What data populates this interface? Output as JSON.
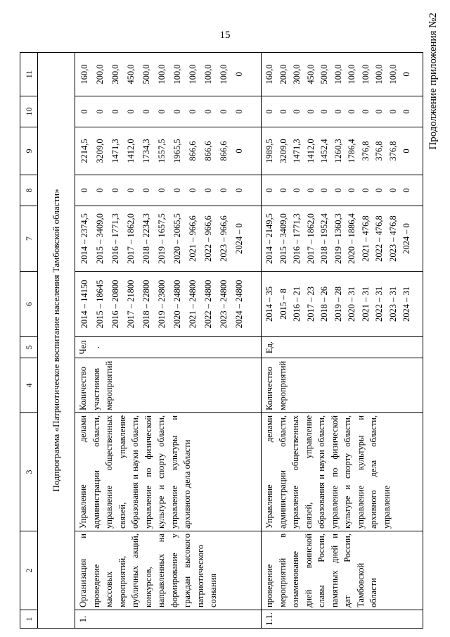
{
  "page": {
    "number": "15",
    "margin_note": "Продолжение приложения №2"
  },
  "table": {
    "column_numbers": [
      "1",
      "2",
      "3",
      "4",
      "5",
      "6",
      "7",
      "8",
      "9",
      "10",
      "11"
    ],
    "subprogram_title": "Подпрограмма «Патриотическое воспитание населения Тамбовской области»",
    "rows": [
      {
        "num": "1.",
        "name": "Организация и проведение массовых мероприятий, публичных акций, конкурсов, направленных на формирование у граждан высокого патриотического сознания",
        "executor": "Управление делами администрации области, управление общественных связей, управление образования и науки области, управление по физической культуре и спорту области, управление культуры и архивного дела области",
        "indicator": "Количество участников мероприятий",
        "unit": "Чел.",
        "indicator_by_year": [
          "2014 – 14150",
          "2015 – 18645",
          "2016 – 20800",
          "2017 – 21800",
          "2018 – 22800",
          "2019 – 23800",
          "2020 – 24800",
          "2021 – 24800",
          "2022 – 24800",
          "2023 – 24800",
          "2024 – 24800"
        ],
        "funding_by_year": [
          "2014 – 2374,5",
          "2015 – 3409,0",
          "2016 – 1771,3",
          "2017 – 1862,0",
          "2018 – 2234,3",
          "2019 – 1657,5",
          "2020 – 2065,5",
          "2021 – 966,6",
          "2022 – 966,6",
          "2023 – 966,6",
          "2024 – 0"
        ],
        "col8_values": [
          "0",
          "0",
          "0",
          "0",
          "0",
          "0",
          "0",
          "0",
          "0",
          "0",
          "0"
        ],
        "col9_values": [
          "2214,5",
          "3209,0",
          "1471,3",
          "1412,0",
          "1734,3",
          "1557,5",
          "1965,5",
          "866,6",
          "866,6",
          "866,6",
          "0"
        ],
        "col10_values": [
          "0",
          "0",
          "0",
          "0",
          "0",
          "0",
          "0",
          "0",
          "0",
          "0",
          "0"
        ],
        "col11_values": [
          "160,0",
          "200,0",
          "300,0",
          "450,0",
          "500,0",
          "100,0",
          "100,0",
          "100,0",
          "100,0",
          "100,0",
          "0"
        ]
      },
      {
        "num": "1.1.",
        "name": "проведение мероприятий в ознаменование дней воинской славы России, памятных дней и дат России, Тамбовской области",
        "executor": "Управление делами администрации области, управление общественных связей, управление образования и науки области, управление по физической культуре и спорту области, управление культуры и архивного дела области, управление",
        "indicator": "Количество мероприятий",
        "unit": "Ед.",
        "indicator_by_year": [
          "2014 – 35",
          "2015 – 8",
          "2016 – 21",
          "2017 – 23",
          "2018 – 26",
          "2019 – 28",
          "2020 – 31",
          "2021 – 31",
          "2022 – 31",
          "2023 – 31",
          "2024 – 31"
        ],
        "funding_by_year": [
          "2014 – 2149,5",
          "2015 – 3409,0",
          "2016 – 1771,3",
          "2017 – 1862,0",
          "2018 – 1952,4",
          "2019 – 1360,3",
          "2020 – 1886,4",
          "2021 – 476,8",
          "2022 – 476,8",
          "2023 – 476,8",
          "2024 – 0"
        ],
        "col8_values": [
          "0",
          "0",
          "0",
          "0",
          "0",
          "0",
          "0",
          "0",
          "0",
          "0",
          "0"
        ],
        "col9_values": [
          "1989,5",
          "3209,0",
          "1471,3",
          "1412,0",
          "1452,4",
          "1260,3",
          "1786,4",
          "376,8",
          "376,8",
          "376,8",
          "0"
        ],
        "col10_values": [
          "0",
          "0",
          "0",
          "0",
          "0",
          "0",
          "0",
          "0",
          "0",
          "0",
          "0"
        ],
        "col11_values": [
          "160,0",
          "200,0",
          "300,0",
          "450,0",
          "500,0",
          "100,0",
          "100,0",
          "100,0",
          "100,0",
          "100,0",
          "0"
        ]
      }
    ]
  }
}
